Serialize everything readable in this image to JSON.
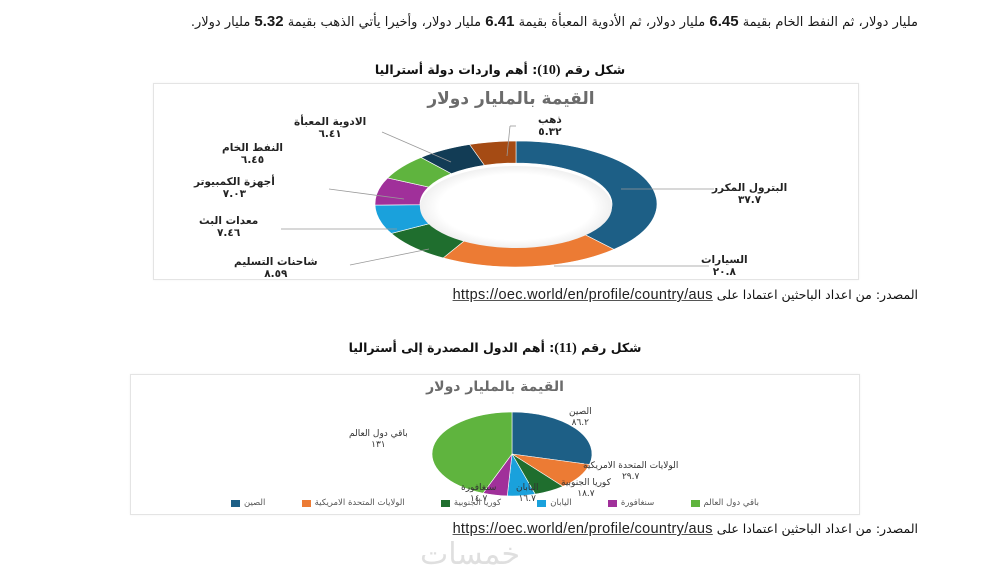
{
  "paragraph": {
    "line1_part1": "مليار دولار، ثم النفط الخام بقيمة ",
    "line1_num1": "6.45",
    "line1_part2": " مليار دولار، ثم الأدوية المعبأة بقيمة ",
    "line1_num2": "6.41",
    "line1_part3": " مليار دولار، وأخيرا يأتي الذهب بقيمة ",
    "line1_num3": "5.32",
    "line1_part4": " مليار دولار."
  },
  "figure10": {
    "caption_prefix": "شكل رقم ",
    "caption_num": "(10)",
    "caption_text": ": أهم واردات دولة أستراليا",
    "chart_title": "القيمة بالمليار دولار",
    "source_text": "المصدر: من اعداد الباحثين اعتمادا على ",
    "source_link": "https://oec.world/en/profile/country/aus"
  },
  "figure11": {
    "caption_prefix": "شكل رقم ",
    "caption_num": "(11)",
    "caption_text": ": أهم الدول المصدرة إلى أستراليا",
    "chart_title": "القيمة بالمليار دولار",
    "source_text": "المصدر: من اعداد الباحثين اعتمادا على ",
    "source_link": "https://oec.world/en/profile/country/aus"
  },
  "watermark": "خمسات",
  "chart_data": [
    {
      "type": "pie",
      "variant": "doughnut",
      "title": "القيمة بالمليار دولار",
      "unit": "billion USD",
      "categories": [
        "البترول المكرر",
        "السيارات",
        "شاحنات التسليم",
        "معدات البث",
        "أجهزة الكمبيوتر",
        "النفط الخام",
        "الادوية المعبأة",
        "ذهب"
      ],
      "values": [
        37.7,
        20.8,
        8.59,
        7.46,
        7.03,
        6.45,
        6.41,
        5.32
      ],
      "value_labels": [
        "٣٧.٧",
        "٢٠.٨",
        "٨.٥٩",
        "٧.٤٦",
        "٧.٠٣",
        "٦.٤٥",
        "٦.٤١",
        "٥.٣٢"
      ],
      "colors": [
        "#1d5f86",
        "#ec7b34",
        "#1f6e2e",
        "#1aa1dc",
        "#a0309a",
        "#5fb43e",
        "#123c55",
        "#a54b14"
      ],
      "legend": "none",
      "data_labels": "outside with leader lines"
    },
    {
      "type": "pie",
      "title": "القيمة بالمليار دولار",
      "unit": "billion USD",
      "categories": [
        "الصين",
        "الولايات المتحدة الامريكية",
        "كوريا الجنوبية",
        "اليابان",
        "سنغافورة",
        "باقي دول العالم"
      ],
      "values": [
        86.2,
        29.7,
        18.7,
        16.7,
        14.7,
        131
      ],
      "value_labels": [
        "٨٦.٢",
        "٢٩.٧",
        "١٨.٧",
        "١٦.٧",
        "١٤.٧",
        "١٣١"
      ],
      "colors": [
        "#1d5f86",
        "#ec7b34",
        "#1f6e2e",
        "#1aa1dc",
        "#a0309a",
        "#5fb43e"
      ],
      "legend": "bottom"
    }
  ]
}
